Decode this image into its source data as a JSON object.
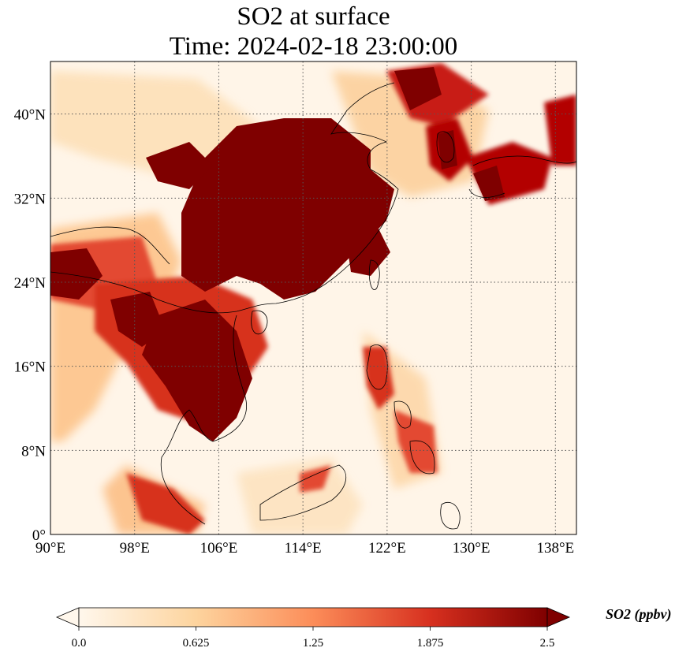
{
  "map": {
    "title_line1": "SO2 at surface",
    "title_line2": "Time: 2024-02-18 23:00:00",
    "lon_labels": [
      "90°E",
      "98°E",
      "106°E",
      "114°E",
      "122°E",
      "130°E",
      "138°E"
    ],
    "lat_labels": [
      "0°",
      "8°N",
      "16°N",
      "24°N",
      "32°N",
      "40°N"
    ],
    "lon_values": [
      90,
      98,
      106,
      114,
      122,
      130,
      138
    ],
    "lat_values": [
      0,
      8,
      16,
      24,
      32,
      40
    ],
    "lon_range": [
      90,
      140
    ],
    "lat_range": [
      0,
      45
    ],
    "gridlines": "dotted",
    "colormap": "OrRd"
  },
  "colorbar": {
    "label": "SO2 (ppbv)",
    "ticks": [
      "0.0",
      "0.625",
      "1.25",
      "1.875",
      "2.5"
    ],
    "tick_values": [
      0.0,
      0.625,
      1.25,
      1.875,
      2.5
    ],
    "range": [
      0.0,
      2.5
    ],
    "extend": "both",
    "colors": [
      "#fff7ec",
      "#fdd49e",
      "#fc8d59",
      "#d7301f",
      "#7f0000"
    ]
  }
}
